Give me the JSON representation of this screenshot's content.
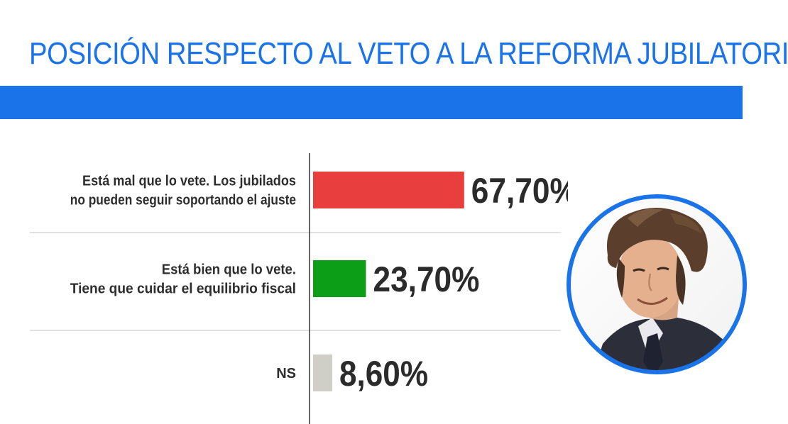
{
  "title": "POSICIÓN RESPECTO AL VETO A LA REFORMA JUBILATORIA",
  "colors": {
    "title": "#1a73e8",
    "band": "#1a73e8",
    "portrait_ring": "#1a73e8",
    "axis": "#333333",
    "separator": "#d6d6d6"
  },
  "chart_data": {
    "type": "bar",
    "orientation": "horizontal",
    "categories": [
      [
        "Está mal que lo vete. Los jubilados",
        "no pueden seguir soportando el ajuste"
      ],
      [
        "Está bien que lo vete.",
        "Tiene que cuidar el equilibrio fiscal"
      ],
      [
        "NS"
      ]
    ],
    "values": [
      67.7,
      23.7,
      8.6
    ],
    "value_labels": [
      "67,70%",
      "23,70%",
      "8,60%"
    ],
    "colors": [
      "#e83e3e",
      "#0b9e16",
      "#cfcfc8"
    ],
    "unit": "%",
    "xlim": [
      0,
      100
    ],
    "grid": false,
    "legend": "none"
  },
  "portrait": {
    "icon": "person-photo-icon"
  }
}
